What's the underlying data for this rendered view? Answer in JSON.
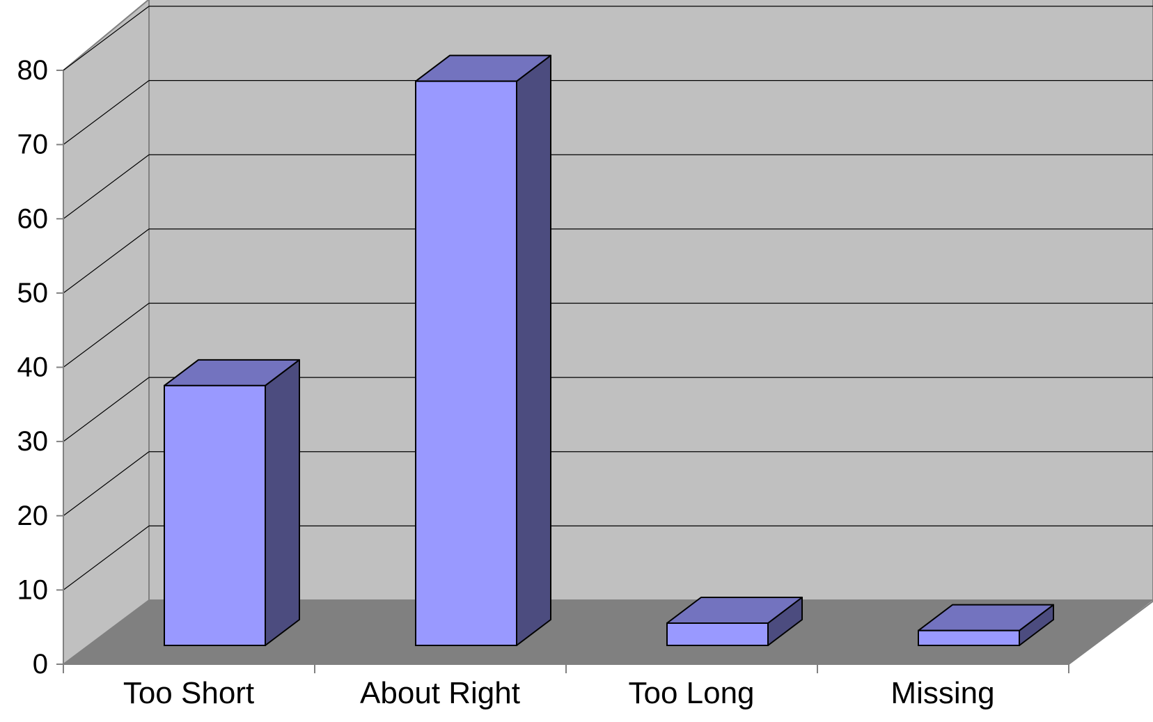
{
  "chart_data": {
    "type": "bar",
    "style": "3d-column",
    "categories": [
      "Too Short",
      "About Right",
      "Too Long",
      "Missing"
    ],
    "values": [
      35,
      76,
      3,
      2
    ],
    "title": "",
    "xlabel": "",
    "ylabel": "",
    "ylim": [
      0,
      80
    ],
    "yticks": [
      0,
      10,
      20,
      30,
      40,
      50,
      60,
      70,
      80
    ],
    "grid": true,
    "legend": "none",
    "colors": {
      "bar_front": "#9999ff",
      "bar_top": "#7373bf",
      "bar_side": "#4c4c7f",
      "back_wall": "#c0c0c0",
      "side_wall": "#c0c0c0",
      "floor": "#808080",
      "grid": "#000000",
      "axis": "#808080"
    }
  }
}
